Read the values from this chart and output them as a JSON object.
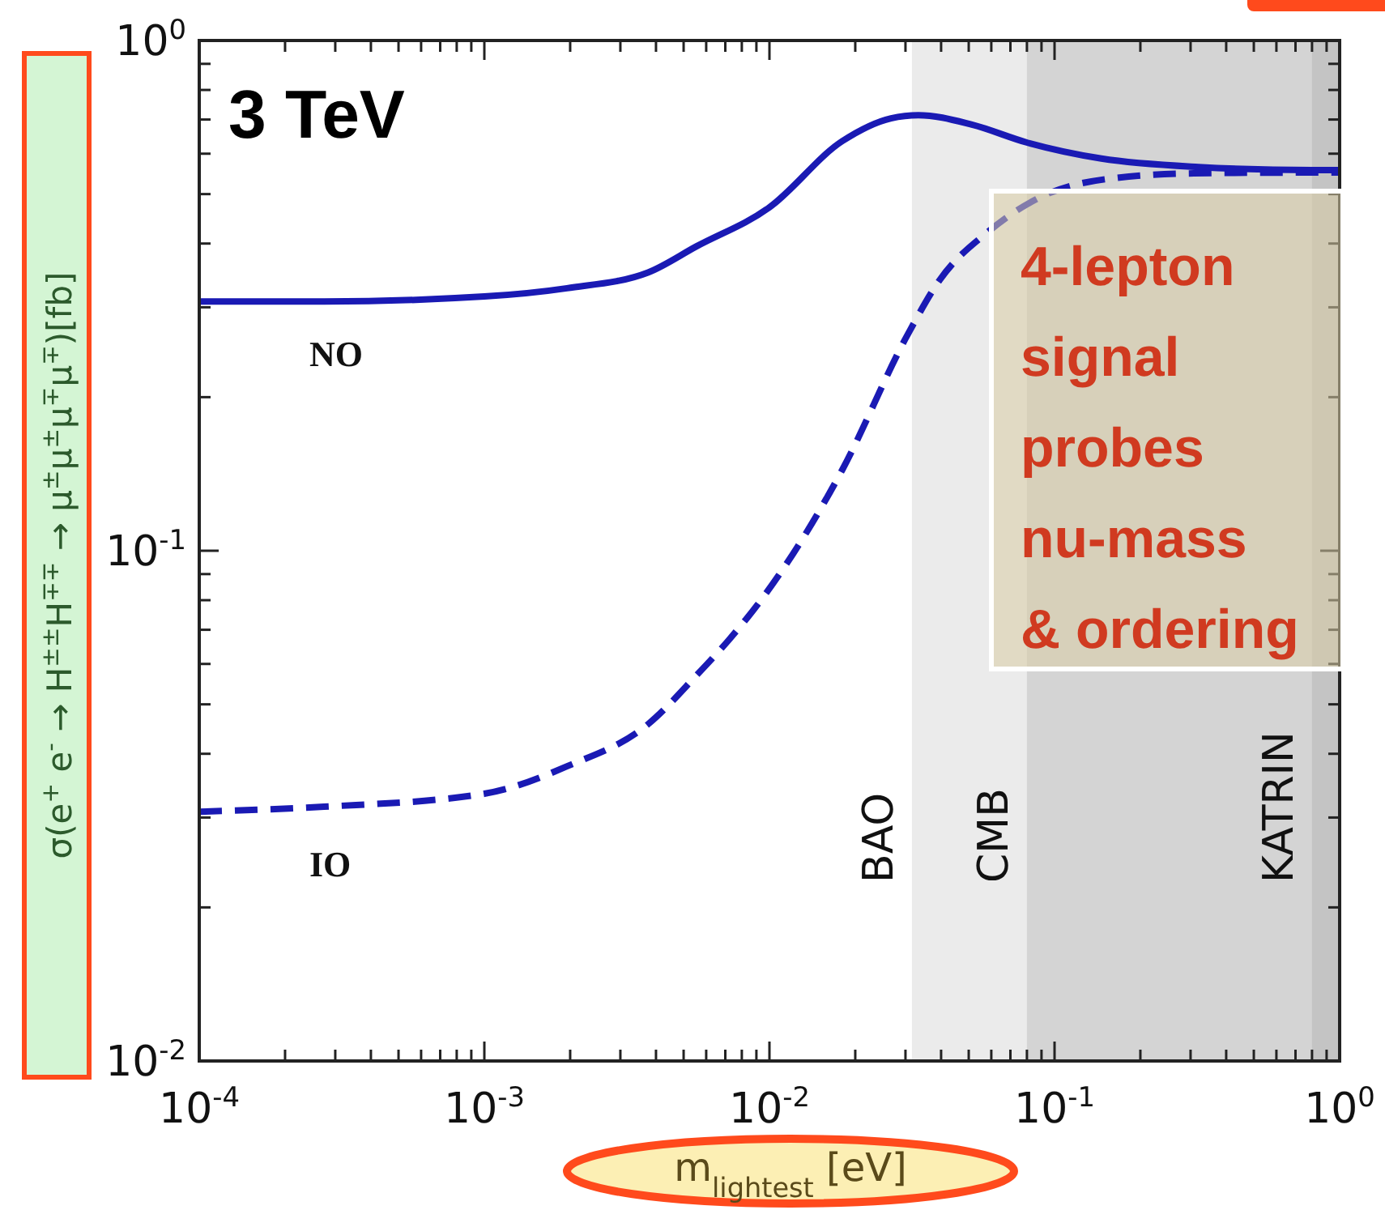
{
  "chart_data": {
    "type": "line",
    "title": "3 TeV",
    "xlabel": "m$_{lightest}$ [eV]",
    "ylabel": "σ(e$^{+}$ e$^{-}$ → H$^{±±}$H$^{∓∓}$ → μ$^{±}$μ$^{±}$μ$^{∓}$μ$^{∓}$)[fb]",
    "log": "xy",
    "xlim": [
      0.0001,
      1
    ],
    "ylim": [
      0.01,
      1
    ],
    "xticks": [
      {
        "value": 0.0001,
        "label": "10$^{-4}$"
      },
      {
        "value": 0.0002,
        "label": null
      },
      {
        "value": 0.0003,
        "label": null
      },
      {
        "value": 0.0004,
        "label": null
      },
      {
        "value": 0.0005,
        "label": null
      },
      {
        "value": 0.0006,
        "label": null
      },
      {
        "value": 0.0007,
        "label": null
      },
      {
        "value": 0.0008,
        "label": null
      },
      {
        "value": 0.0009,
        "label": null
      },
      {
        "value": 0.001,
        "label": "10$^{-3}$"
      },
      {
        "value": 0.002,
        "label": null
      },
      {
        "value": 0.003,
        "label": null
      },
      {
        "value": 0.004,
        "label": null
      },
      {
        "value": 0.005,
        "label": null
      },
      {
        "value": 0.006,
        "label": null
      },
      {
        "value": 0.007,
        "label": null
      },
      {
        "value": 0.008,
        "label": null
      },
      {
        "value": 0.009,
        "label": null
      },
      {
        "value": 0.01,
        "label": "10$^{-2}$"
      },
      {
        "value": 0.02,
        "label": null
      },
      {
        "value": 0.03,
        "label": null
      },
      {
        "value": 0.04,
        "label": null
      },
      {
        "value": 0.05,
        "label": null
      },
      {
        "value": 0.06,
        "label": null
      },
      {
        "value": 0.07,
        "label": null
      },
      {
        "value": 0.08,
        "label": null
      },
      {
        "value": 0.09,
        "label": null
      },
      {
        "value": 0.1,
        "label": "10$^{-1}$"
      },
      {
        "value": 0.2,
        "label": null
      },
      {
        "value": 0.3,
        "label": null
      },
      {
        "value": 0.4,
        "label": null
      },
      {
        "value": 0.5,
        "label": null
      },
      {
        "value": 0.6,
        "label": null
      },
      {
        "value": 0.7,
        "label": null
      },
      {
        "value": 0.8,
        "label": null
      },
      {
        "value": 0.9,
        "label": null
      },
      {
        "value": 1,
        "label": "10$^{0}$"
      }
    ],
    "yticks": [
      {
        "value": 0.01,
        "label": "10$^{-2}$"
      },
      {
        "value": 0.02,
        "label": null
      },
      {
        "value": 0.03,
        "label": null
      },
      {
        "value": 0.04,
        "label": null
      },
      {
        "value": 0.05,
        "label": null
      },
      {
        "value": 0.06,
        "label": null
      },
      {
        "value": 0.07,
        "label": null
      },
      {
        "value": 0.08,
        "label": null
      },
      {
        "value": 0.09,
        "label": null
      },
      {
        "value": 0.1,
        "label": "10$^{-1}$"
      },
      {
        "value": 0.2,
        "label": null
      },
      {
        "value": 0.3,
        "label": null
      },
      {
        "value": 0.4,
        "label": null
      },
      {
        "value": 0.5,
        "label": null
      },
      {
        "value": 0.6,
        "label": null
      },
      {
        "value": 0.7,
        "label": null
      },
      {
        "value": 0.8,
        "label": null
      },
      {
        "value": 0.9,
        "label": null
      },
      {
        "value": 1,
        "label": "10$^{0}$"
      }
    ],
    "bands": [
      {
        "axis": "x",
        "from": 0.0316,
        "to": 1,
        "label": "BAO",
        "color": "#ebebeb"
      },
      {
        "axis": "x",
        "from": 0.08,
        "to": 1,
        "label": "CMB",
        "color": "#d4d4d4"
      },
      {
        "axis": "x",
        "from": 0.8,
        "to": 1,
        "label": "KATRIN",
        "color": "#c4c4c4"
      }
    ],
    "series": [
      {
        "name": "NO",
        "color": "#1a1ab4",
        "line_style": "solid",
        "x": [
          0.0001,
          0.000274,
          0.001,
          0.00195,
          0.00375,
          0.00555,
          0.01,
          0.018,
          0.0267,
          0.0333,
          0.0513,
          0.08,
          0.146,
          0.32,
          0.8,
          1
        ],
        "values": [
          0.308,
          0.308,
          0.315,
          0.327,
          0.351,
          0.395,
          0.471,
          0.635,
          0.704,
          0.714,
          0.684,
          0.631,
          0.587,
          0.565,
          0.557,
          0.557
        ]
      },
      {
        "name": "IO",
        "color": "#1a1ab4",
        "line_style": "dashed",
        "x": [
          0.0001,
          0.000274,
          0.001,
          0.00195,
          0.00375,
          0.00555,
          0.00721,
          0.0094,
          0.018,
          0.0304,
          0.0395,
          0.0585,
          0.0865,
          0.16,
          0.308,
          0.8,
          1
        ],
        "values": [
          0.0308,
          0.0315,
          0.0334,
          0.0378,
          0.0457,
          0.057,
          0.0669,
          0.0804,
          0.144,
          0.264,
          0.339,
          0.422,
          0.489,
          0.537,
          0.549,
          0.551,
          0.551
        ]
      }
    ],
    "annotations": [
      "4-lepton signal probes nu-mass & ordering"
    ]
  }
}
